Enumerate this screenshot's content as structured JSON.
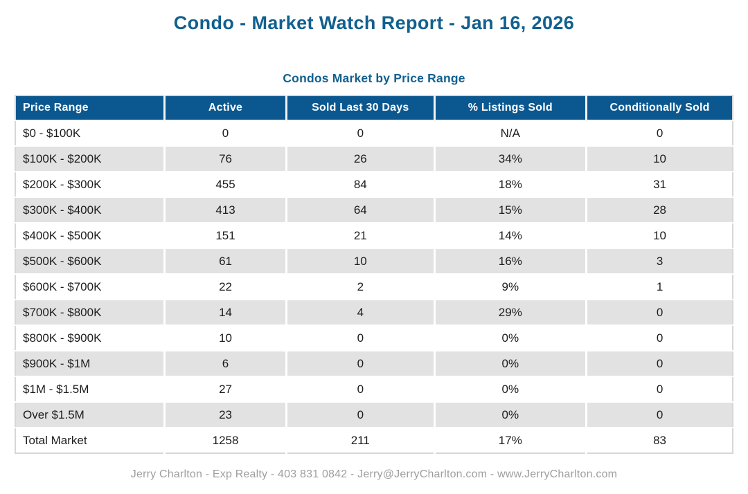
{
  "page": {
    "title": "Condo - Market Watch Report - Jan 16, 2026",
    "footer": "Jerry Charlton - Exp Realty - 403 831 0842 - Jerry@JerryCharlton.com - www.JerryCharlton.com"
  },
  "chart_data": {
    "type": "table",
    "title": "Condos Market by Price Range",
    "columns": [
      "Price Range",
      "Active",
      "Sold Last 30 Days",
      "% Listings Sold",
      "Conditionally Sold"
    ],
    "rows": [
      [
        "$0 - $100K",
        "0",
        "0",
        "N/A",
        "0"
      ],
      [
        "$100K - $200K",
        "76",
        "26",
        "34%",
        "10"
      ],
      [
        "$200K - $300K",
        "455",
        "84",
        "18%",
        "31"
      ],
      [
        "$300K - $400K",
        "413",
        "64",
        "15%",
        "28"
      ],
      [
        "$400K - $500K",
        "151",
        "21",
        "14%",
        "10"
      ],
      [
        "$500K - $600K",
        "61",
        "10",
        "16%",
        "3"
      ],
      [
        "$600K - $700K",
        "22",
        "2",
        "9%",
        "1"
      ],
      [
        "$700K - $800K",
        "14",
        "4",
        "29%",
        "0"
      ],
      [
        "$800K - $900K",
        "10",
        "0",
        "0%",
        "0"
      ],
      [
        "$900K - $1M",
        "6",
        "0",
        "0%",
        "0"
      ],
      [
        "$1M - $1.5M",
        "27",
        "0",
        "0%",
        "0"
      ],
      [
        "Over $1.5M",
        "23",
        "0",
        "0%",
        "0"
      ],
      [
        "Total Market",
        "1258",
        "211",
        "17%",
        "83"
      ]
    ]
  },
  "colors": {
    "title_blue": "#11608F",
    "header_bg": "#0B5890",
    "header_text": "#FFFFFF",
    "row_alt_bg": "#E2E2E2",
    "body_text": "#1C1C1C",
    "footer_text": "#9E9E9E"
  }
}
